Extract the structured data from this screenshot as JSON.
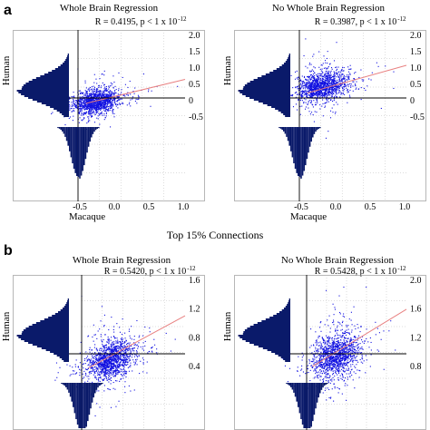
{
  "figure": {
    "label_a": "a",
    "label_b": "b",
    "section_title": "Top 15% Connections"
  },
  "chart_data": [
    {
      "type": "scatter",
      "panel": "a",
      "title": "Whole Brain Regression",
      "stat": "R = 0.4195, p < 1 x 10",
      "stat_exp": "-12",
      "xlabel": "Macaque",
      "ylabel": "Human",
      "x_ticks": [
        "-0.5",
        "0.0",
        "0.5",
        "1.0"
      ],
      "y_ticks": [
        "2.0",
        "1.5",
        "1.0",
        "0.5",
        "0",
        "-0.5"
      ],
      "xlim": [
        -0.5,
        1.0
      ],
      "ylim": [
        -0.6,
        2.0
      ],
      "regression": {
        "slope": 0.65,
        "intercept": 0.05
      },
      "point_cloud": {
        "x_mean": 0.05,
        "x_sd": 0.12,
        "y_mean": 0.08,
        "y_sd": 0.16
      },
      "grid": true,
      "marginal_histograms": true,
      "point_color": "#1010e0",
      "line_color": "#e88080",
      "hist_color": "#0a1a6a"
    },
    {
      "type": "scatter",
      "panel": "a",
      "title": "No Whole Brain Regression",
      "stat": "R = 0.3987, p < 1 x 10",
      "stat_exp": "-12",
      "xlabel": "Macaque",
      "ylabel": "Human",
      "x_ticks": [
        "-0.5",
        "0.0",
        "0.5",
        "1.0"
      ],
      "y_ticks": [
        "2.0",
        "1.5",
        "1.0",
        "0.5",
        "0",
        "-0.5"
      ],
      "xlim": [
        -0.5,
        1.0
      ],
      "ylim": [
        -0.6,
        2.0
      ],
      "regression": {
        "slope": 0.75,
        "intercept": 0.35
      },
      "point_cloud": {
        "x_mean": 0.1,
        "x_sd": 0.13,
        "y_mean": 0.5,
        "y_sd": 0.2
      },
      "grid": true,
      "marginal_histograms": true,
      "point_color": "#1010e0",
      "line_color": "#e88080",
      "hist_color": "#0a1a6a"
    },
    {
      "type": "scatter",
      "panel": "b",
      "title": "Whole Brain Regression",
      "stat": "R = 0.5420, p < 1 x 10",
      "stat_exp": "-12",
      "xlabel": "",
      "ylabel": "Human",
      "x_ticks": [],
      "y_ticks": [
        "1.6",
        "1.2",
        "0.8",
        "0.4"
      ],
      "xlim": [
        -0.5,
        1.0
      ],
      "ylim": [
        0.1,
        1.75
      ],
      "regression": {
        "slope": 0.8,
        "intercept": 0.35
      },
      "point_cloud": {
        "x_mean": 0.18,
        "x_sd": 0.13,
        "y_mean": 0.45,
        "y_sd": 0.15
      },
      "grid": true,
      "marginal_histograms": true,
      "point_color": "#1010e0",
      "line_color": "#e88080",
      "hist_color": "#0a1a6a"
    },
    {
      "type": "scatter",
      "panel": "b",
      "title": "No Whole Brain Regression",
      "stat": "R = 0.5428, p < 1 x 10",
      "stat_exp": "-12",
      "xlabel": "",
      "ylabel": "Human",
      "x_ticks": [],
      "y_ticks": [
        "2.0",
        "1.6",
        "1.2",
        "0.8"
      ],
      "xlim": [
        -0.5,
        1.0
      ],
      "ylim": [
        0.45,
        2.05
      ],
      "regression": {
        "slope": 0.85,
        "intercept": 0.72
      },
      "point_cloud": {
        "x_mean": 0.2,
        "x_sd": 0.13,
        "y_mean": 0.85,
        "y_sd": 0.17
      },
      "grid": true,
      "marginal_histograms": true,
      "point_color": "#1010e0",
      "line_color": "#e88080",
      "hist_color": "#0a1a6a"
    }
  ]
}
